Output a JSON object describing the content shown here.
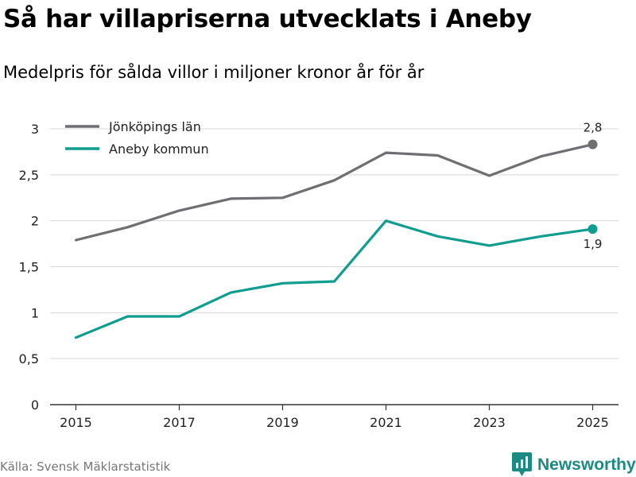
{
  "header": {
    "title": "Så har villapriserna utvecklats i Aneby",
    "subtitle": "Medelpris för sålda villor i miljoner kronor år för år"
  },
  "footer": {
    "source": "Källa: Svensk Mäklarstatistik",
    "brand": "Newsworthy"
  },
  "colors": {
    "lan": "#6e6e73",
    "kommun": "#0f9d8f",
    "grid": "#d9d9d9",
    "axis": "#333333",
    "brand": "#1a8a82"
  },
  "chart_data": {
    "type": "line",
    "title": "Så har villapriserna utvecklats i Aneby",
    "subtitle": "Medelpris för sålda villor i miljoner kronor år för år",
    "xlabel": "",
    "ylabel": "",
    "x": [
      2015,
      2016,
      2017,
      2018,
      2019,
      2020,
      2021,
      2022,
      2023,
      2024,
      2025
    ],
    "xticks": [
      2015,
      2017,
      2019,
      2021,
      2023,
      2025
    ],
    "xtick_labels": [
      "2015",
      "2017",
      "2019",
      "2021",
      "2023",
      "2025"
    ],
    "xlim": [
      2014.5,
      2025.5
    ],
    "ylim": [
      0,
      3
    ],
    "yticks": [
      0,
      0.5,
      1,
      1.5,
      2,
      2.5,
      3
    ],
    "ytick_labels": [
      "0",
      "0,5",
      "1",
      "1,5",
      "2",
      "2,5",
      "3"
    ],
    "grid": true,
    "legend_position": "top-left",
    "series": [
      {
        "name": "Jönköpings län",
        "color": "#6e6e73",
        "values": [
          1.79,
          1.93,
          2.11,
          2.24,
          2.25,
          2.44,
          2.74,
          2.71,
          2.49,
          2.7,
          2.83
        ],
        "end_label": "2,8",
        "end_label_position": "above"
      },
      {
        "name": "Aneby kommun",
        "color": "#0f9d8f",
        "values": [
          0.73,
          0.96,
          0.96,
          1.22,
          1.32,
          1.34,
          2.0,
          1.83,
          1.73,
          1.83,
          1.91
        ],
        "end_label": "1,9",
        "end_label_position": "below"
      }
    ]
  }
}
